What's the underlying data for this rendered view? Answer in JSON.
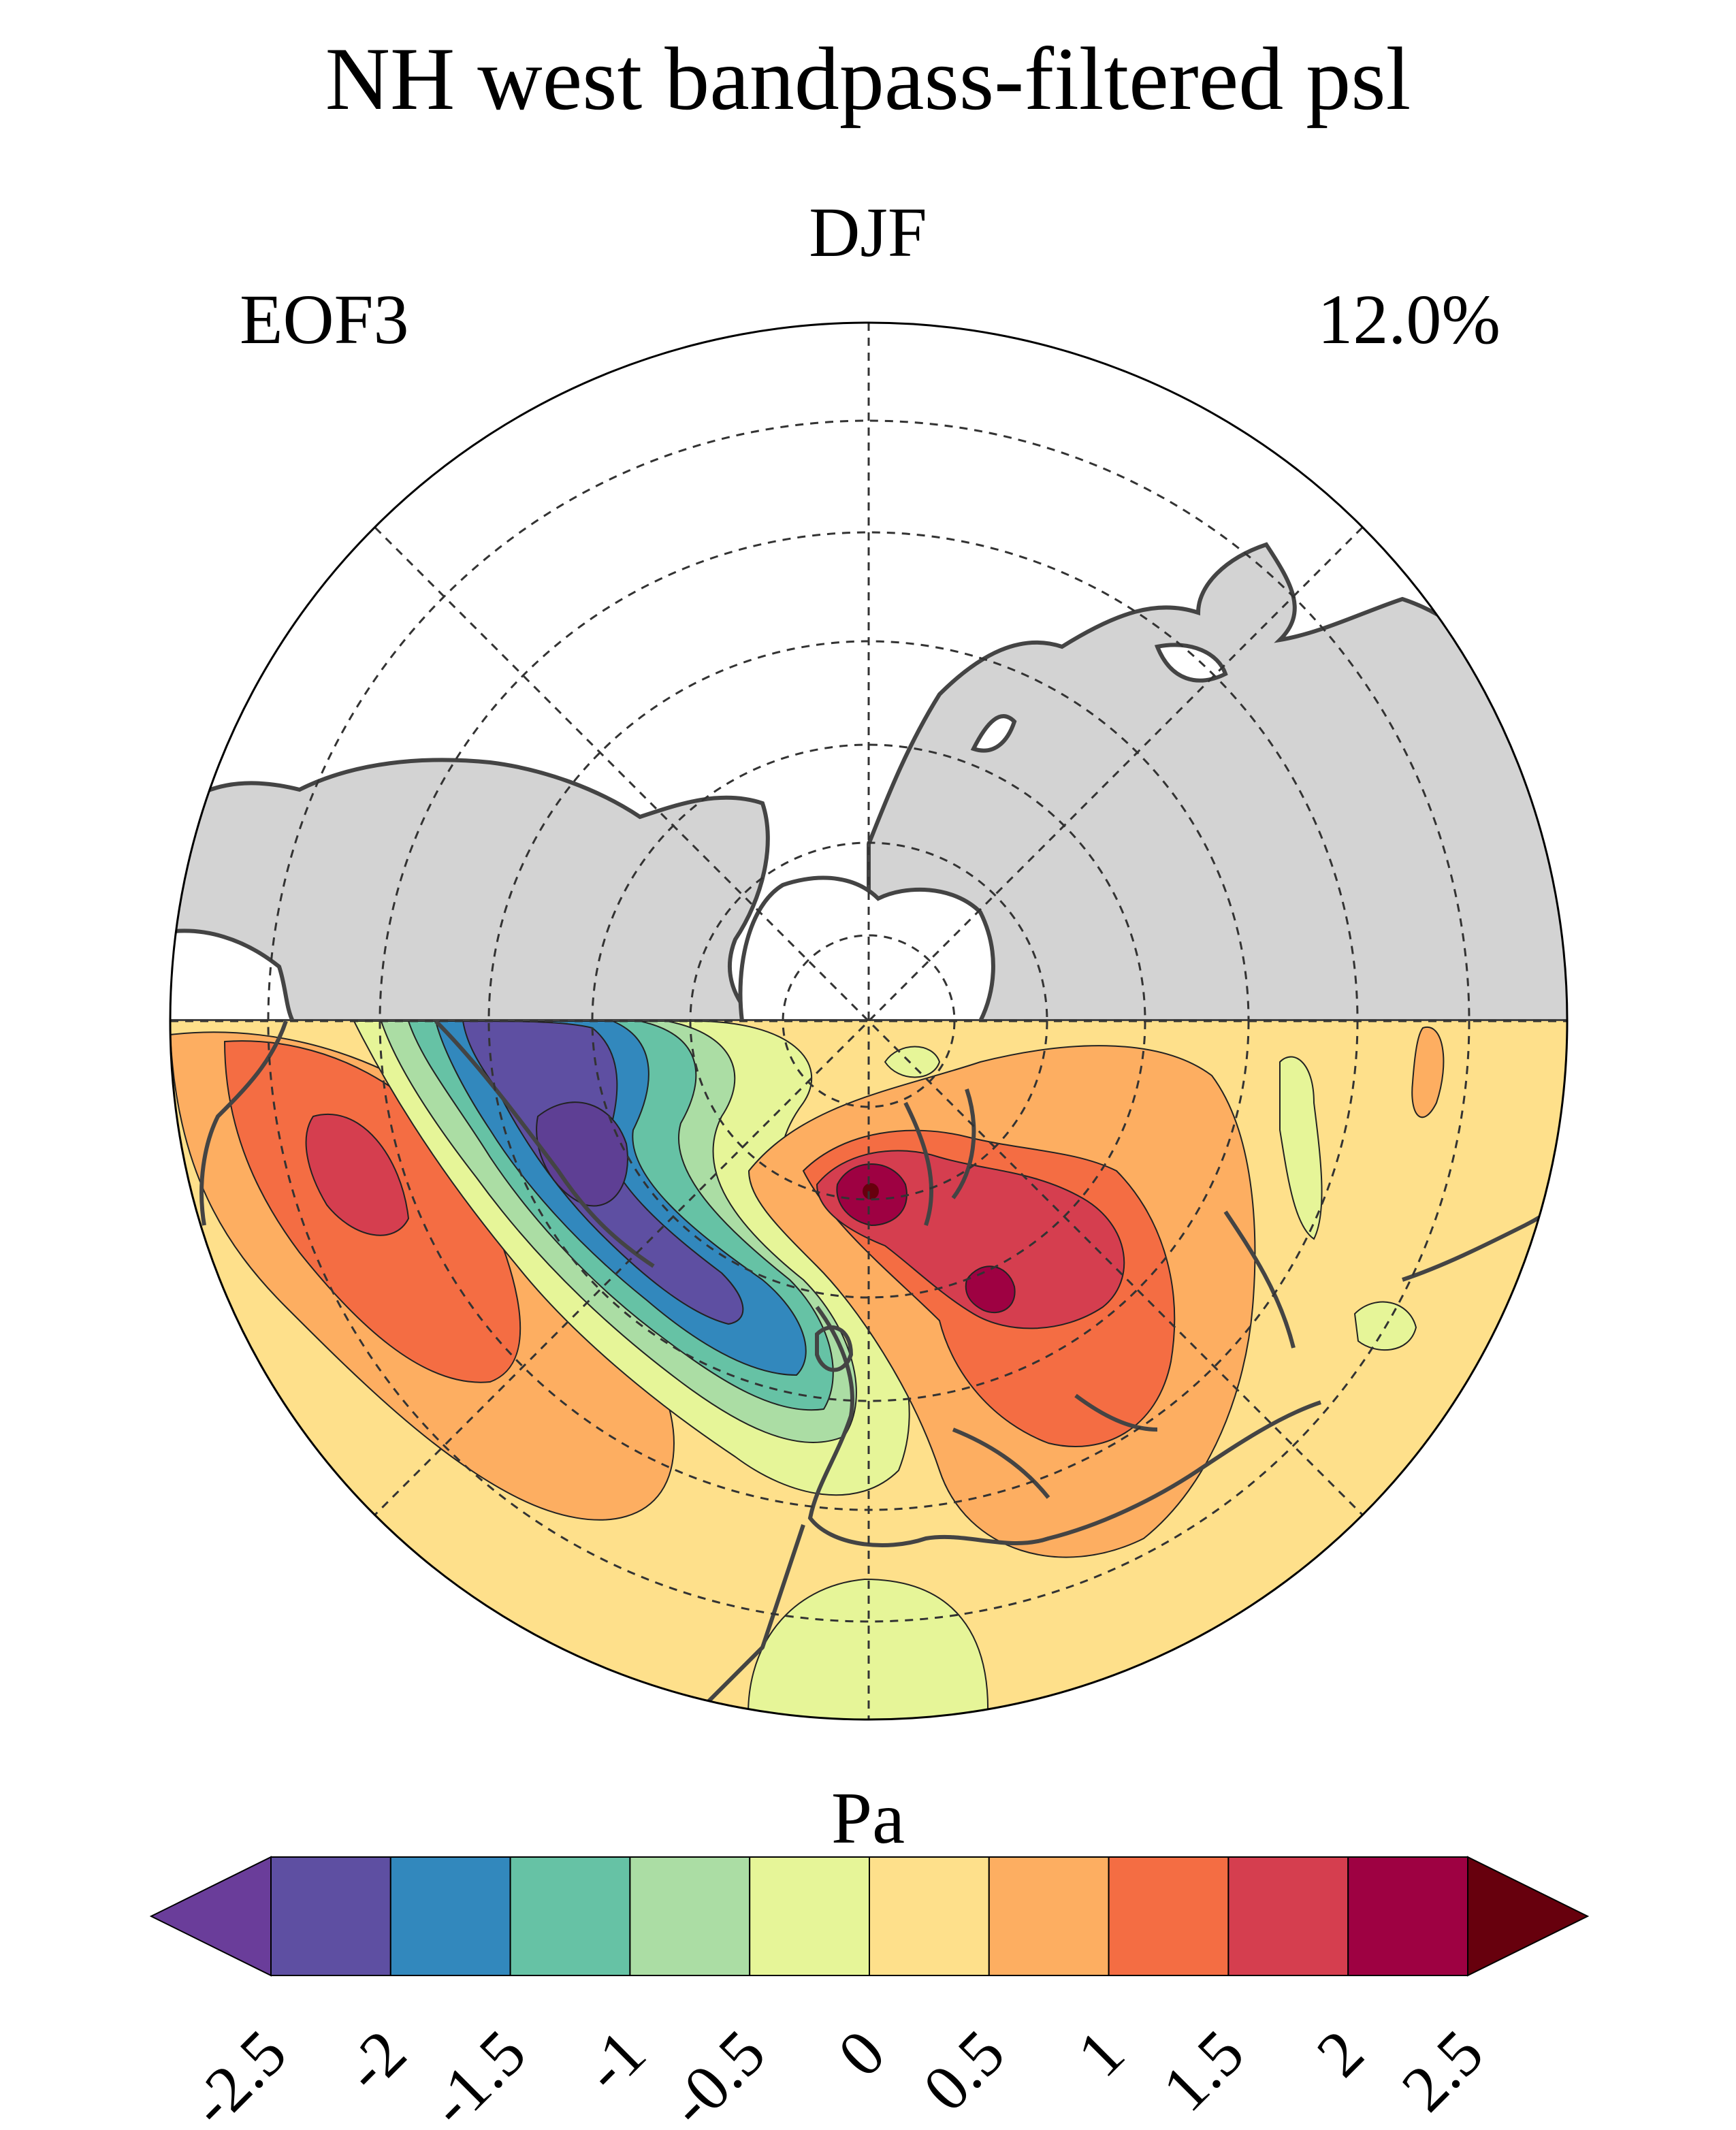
{
  "title": "NH west bandpass-filtered psl",
  "season": "DJF",
  "mode_label": "EOF3",
  "variance_explained": "12.0%",
  "colorbar": {
    "units": "Pa",
    "tick_labels": [
      "-2.5",
      "-2",
      "-1.5",
      "-1",
      "-0.5",
      "0",
      "0.5",
      "1",
      "1.5",
      "2",
      "2.5"
    ],
    "bins": [
      {
        "min": -2.5,
        "max": -2.0,
        "color": "#5e4fa2"
      },
      {
        "min": -2.0,
        "max": -1.5,
        "color": "#3288bd"
      },
      {
        "min": -1.5,
        "max": -1.0,
        "color": "#66c2a5"
      },
      {
        "min": -1.0,
        "max": -0.5,
        "color": "#abdda4"
      },
      {
        "min": -0.5,
        "max": 0.0,
        "color": "#e6f598"
      },
      {
        "min": 0.0,
        "max": 0.5,
        "color": "#fee08b"
      },
      {
        "min": 0.5,
        "max": 1.0,
        "color": "#fdae61"
      },
      {
        "min": 1.0,
        "max": 1.5,
        "color": "#f46d43"
      },
      {
        "min": 1.5,
        "max": 2.0,
        "color": "#d53e4f"
      },
      {
        "min": 2.0,
        "max": 2.5,
        "color": "#9e0142"
      }
    ],
    "under_color": "#6a3d9a",
    "over_color": "#67000d"
  },
  "map": {
    "projection": "north-polar-stereographic",
    "land_color": "#d3d3d3",
    "coast_color": "#444444",
    "masked_hemisphere": "upper"
  }
}
